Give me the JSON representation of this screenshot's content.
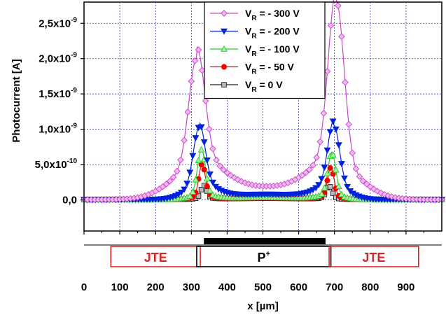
{
  "chart_data": {
    "type": "line",
    "xlabel": "x [µm]",
    "ylabel": "Photocurrent [A]",
    "xlim": [
      0,
      1000
    ],
    "ylim": [
      -4.4e-10,
      2.8e-09
    ],
    "grid": true,
    "legend_position": "top-center",
    "x_ticks": [
      {
        "value": 0,
        "label": "0"
      },
      {
        "value": 100,
        "label": "100"
      },
      {
        "value": 200,
        "label": "200"
      },
      {
        "value": 300,
        "label": "300"
      },
      {
        "value": 400,
        "label": "400"
      },
      {
        "value": 500,
        "label": "500"
      },
      {
        "value": 600,
        "label": "600"
      },
      {
        "value": 700,
        "label": "700"
      },
      {
        "value": 800,
        "label": "800"
      },
      {
        "value": 900,
        "label": "900"
      }
    ],
    "y_ticks": [
      {
        "value": 0,
        "mantissa": "0,0",
        "exponent": ""
      },
      {
        "value": 5e-10,
        "mantissa": "5,0x10",
        "exponent": "-10"
      },
      {
        "value": 1e-09,
        "mantissa": "1,0x10",
        "exponent": "-9"
      },
      {
        "value": 1.5e-09,
        "mantissa": "1,5x10",
        "exponent": "-9"
      },
      {
        "value": 2e-09,
        "mantissa": "2,0x10",
        "exponent": "-9"
      },
      {
        "value": 2.5e-09,
        "mantissa": "2,5x10",
        "exponent": "-9"
      }
    ],
    "series": [
      {
        "name_main": "V",
        "name_sub": "R",
        "name_rest": " = - 300 V",
        "color": "#cc44cc",
        "fill": "#f0b8f0",
        "marker": "diamond",
        "params": {
          "c1": 315,
          "c2": 705,
          "a1": 1.55e-09,
          "a2": 2.35e-09,
          "w": 22,
          "b1": 4.5e-10,
          "b2": 4.5e-10,
          "bw": 70,
          "mid": 1.55e-10
        }
      },
      {
        "name_main": "V",
        "name_sub": "R",
        "name_rest": " = - 200 V",
        "color": "#0022dd",
        "fill": "#0022dd",
        "marker": "triangle-down",
        "params": {
          "c1": 322,
          "c2": 698,
          "a1": 8.2e-10,
          "a2": 8.5e-10,
          "w": 16,
          "b1": 2e-10,
          "b2": 2e-10,
          "bw": 40,
          "mid": 6e-11
        }
      },
      {
        "name_main": "V",
        "name_sub": "R",
        "name_rest": " = - 100 V",
        "color": "#22cc22",
        "fill": "#aaf0aa",
        "marker": "triangle-up",
        "params": {
          "c1": 328,
          "c2": 693,
          "a1": 6.4e-10,
          "a2": 5.9e-10,
          "w": 11,
          "b1": 6e-11,
          "b2": 6e-11,
          "bw": 30,
          "mid": 1.5e-11
        }
      },
      {
        "name_main": "V",
        "name_sub": "R",
        "name_rest": " = - 50 V",
        "color": "#ee0000",
        "fill": "#ee0000",
        "marker": "circle",
        "params": {
          "c1": 330,
          "c2": 690,
          "a1": 4.6e-10,
          "a2": 4e-10,
          "w": 9,
          "b1": 4e-11,
          "b2": 4e-11,
          "bw": 25,
          "mid": 1e-11
        }
      },
      {
        "name_main": "V",
        "name_sub": "R",
        "name_rest": " = 0 V",
        "color": "#222222",
        "fill": "#bbbbbb",
        "marker": "square",
        "params": {
          "c1": 335,
          "c2": 685,
          "a1": 1.7e-10,
          "a2": 1.65e-10,
          "w": 8,
          "b1": 2e-11,
          "b2": 2e-11,
          "bw": 20,
          "mid": 5e-12
        }
      }
    ],
    "regions": [
      {
        "label": "JTE",
        "x0": 75,
        "x1": 325,
        "color": "#dd2222"
      },
      {
        "label": "P",
        "label_sup": "+",
        "x0": 315,
        "x1": 690,
        "color": "#000000"
      },
      {
        "label": "JTE",
        "x0": 685,
        "x1": 935,
        "color": "#dd2222"
      }
    ],
    "metal_bar": {
      "x0": 335,
      "x1": 675
    }
  }
}
